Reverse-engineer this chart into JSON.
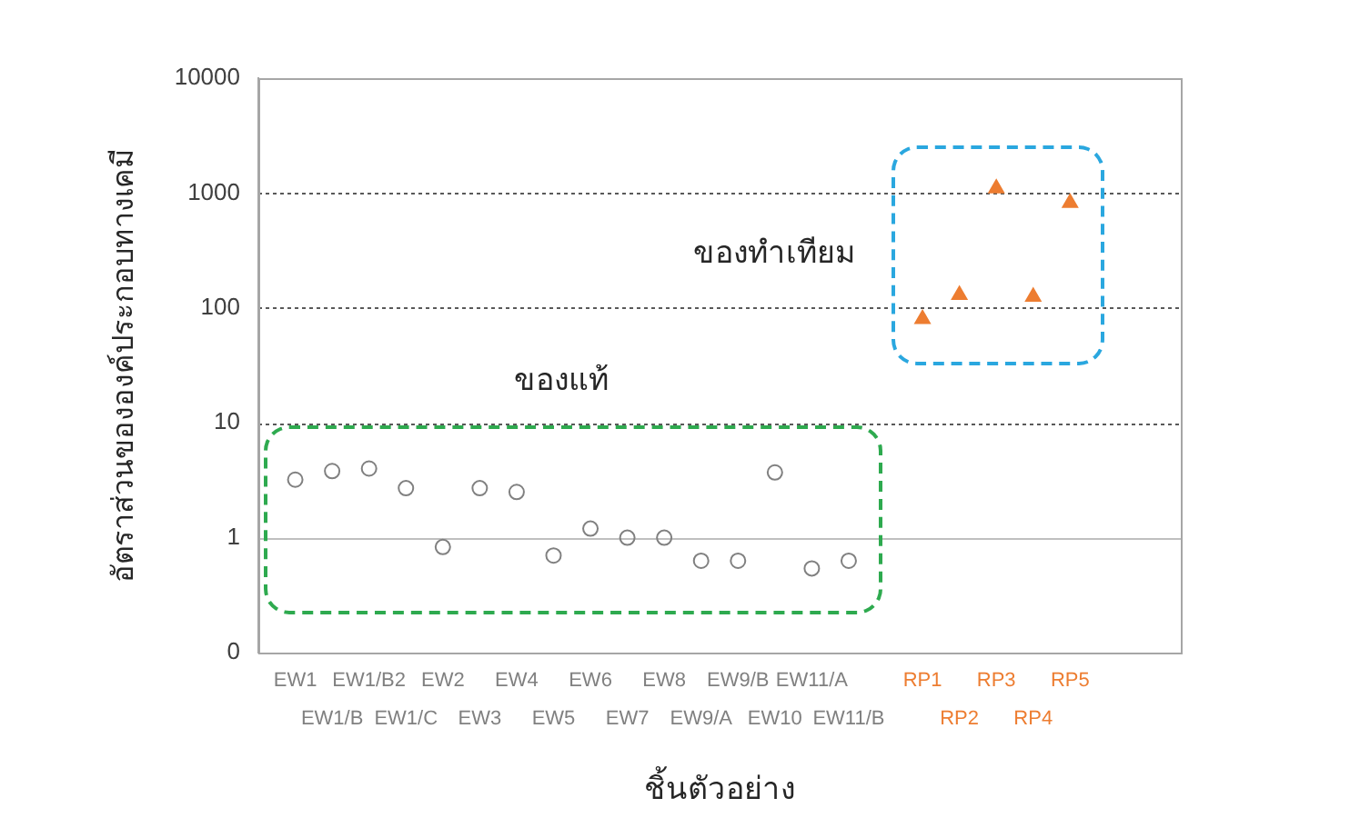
{
  "chart_data": {
    "type": "scatter",
    "xlabel": "ชิ้นตัวอย่าง",
    "ylabel": "อัตราส่วนขององค์ประกอบทางเคมี",
    "categories": [
      "EW1",
      "EW1/B",
      "EW1/B2",
      "EW1/C",
      "EW2",
      "EW3",
      "EW4",
      "EW5",
      "EW6",
      "EW7",
      "EW8",
      "EW9/A",
      "EW9/B",
      "EW10",
      "EW11/A",
      "EW11/B",
      null,
      "RP1",
      "RP2",
      "RP3",
      "RP4",
      "RP5"
    ],
    "series": [
      {
        "name": "ของแท้",
        "color": "#808080",
        "marker": "circle",
        "values": [
          3.2,
          3.8,
          4.0,
          2.7,
          0.83,
          2.7,
          2.5,
          0.7,
          1.2,
          1.0,
          1.0,
          0.63,
          0.63,
          3.7,
          0.54,
          0.63,
          null,
          null,
          null,
          null,
          null,
          null
        ]
      },
      {
        "name": "ของทำเทียม",
        "color": "#ed7d31",
        "marker": "triangle",
        "values": [
          null,
          null,
          null,
          null,
          null,
          null,
          null,
          null,
          null,
          null,
          null,
          null,
          null,
          null,
          null,
          null,
          null,
          80,
          130,
          1100,
          125,
          820
        ]
      }
    ],
    "log": "y",
    "ylim": [
      0.1,
      10000
    ],
    "yticks": [
      {
        "value": 0.1,
        "label": "0"
      },
      1,
      10,
      100,
      1000,
      10000
    ],
    "grid": "y",
    "ref_lines": [
      {
        "axis": "y",
        "value": 1,
        "color": "#bfbfbf"
      }
    ]
  }
}
